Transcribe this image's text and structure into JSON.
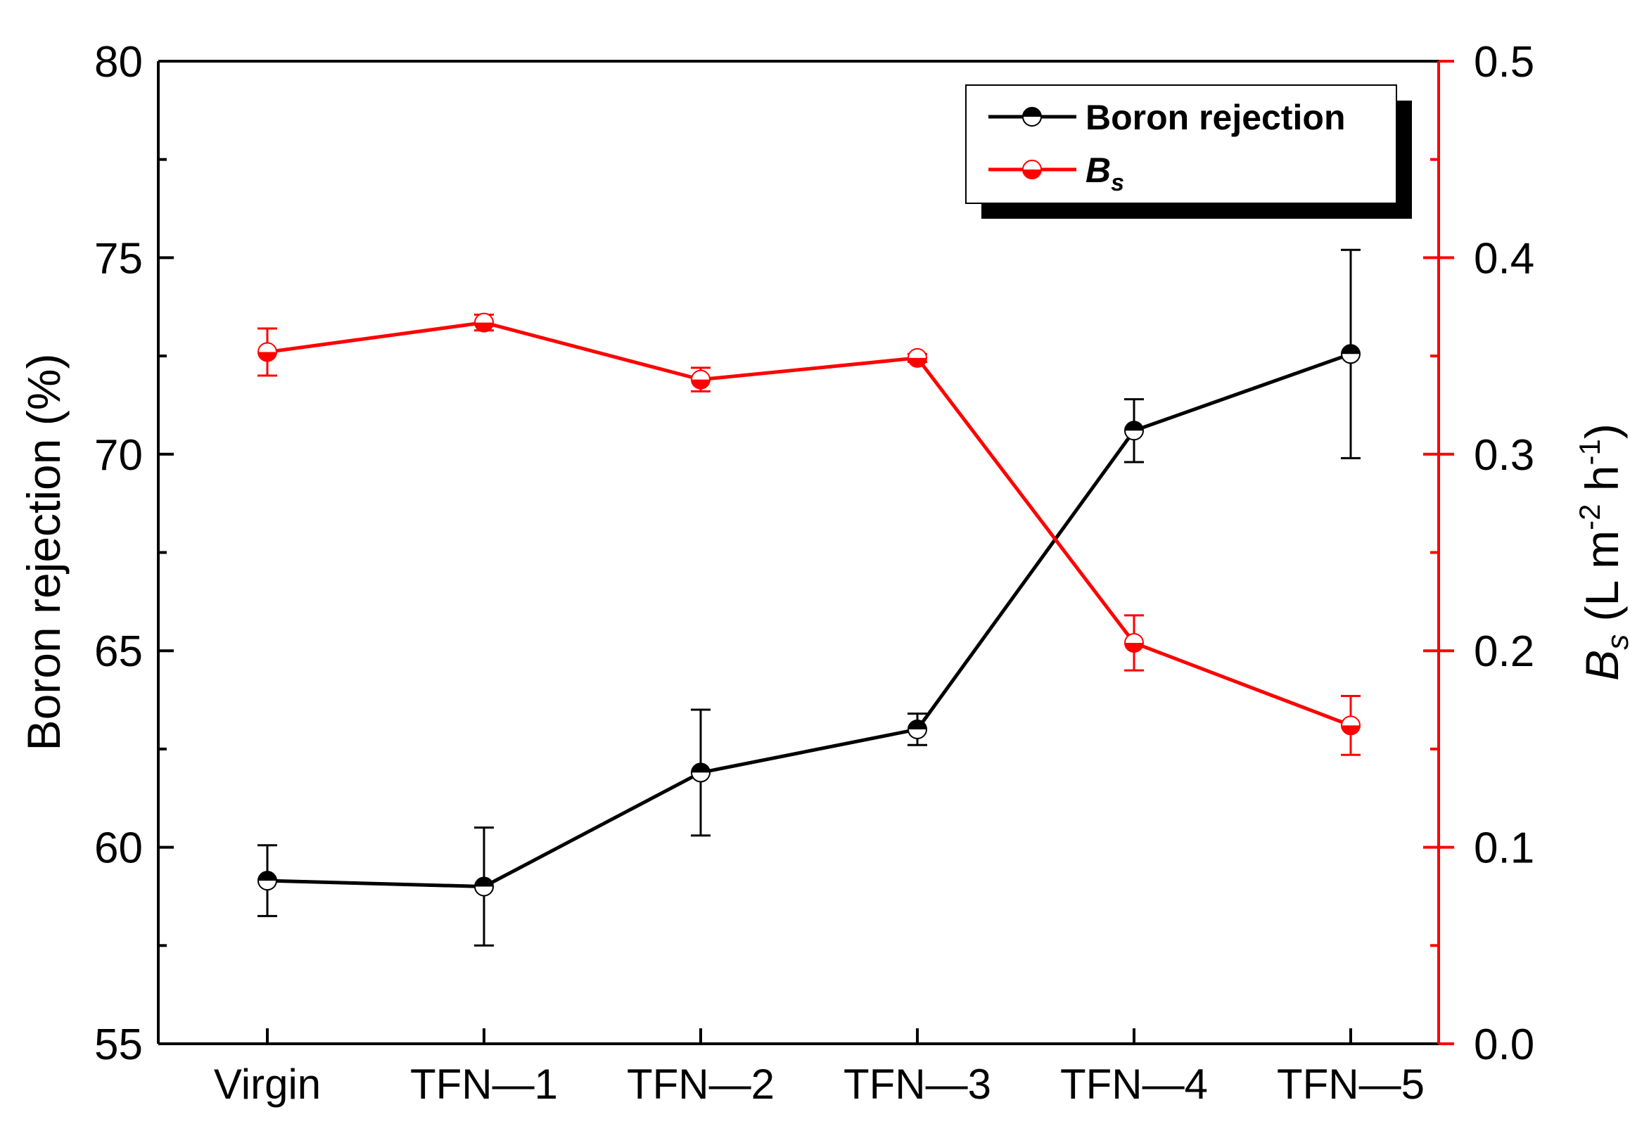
{
  "chart_data": {
    "type": "line",
    "categories": [
      "Virgin",
      "TFN—1",
      "TFN—2",
      "TFN—3",
      "TFN—4",
      "TFN—5"
    ],
    "left_axis": {
      "label": "Boron rejection (%)",
      "ylim": [
        55,
        80
      ],
      "ticks": [
        "55",
        "60",
        "65",
        "70",
        "75",
        "80"
      ],
      "tick_values": [
        55,
        60,
        65,
        70,
        75,
        80
      ],
      "minor_values": [
        57.5,
        62.5,
        67.5,
        72.5,
        77.5
      ],
      "color": "#000000"
    },
    "right_axis": {
      "label_main": "B",
      "label_sub": "s",
      "label_unit": " (L m",
      "label_sup1": "-2",
      "label_mid": " h",
      "label_sup2": "-1",
      "label_end": ")",
      "ylim": [
        0.0,
        0.5
      ],
      "ticks": [
        "0.0",
        "0.1",
        "0.2",
        "0.3",
        "0.4",
        "0.5"
      ],
      "tick_values": [
        0.0,
        0.1,
        0.2,
        0.3,
        0.4,
        0.5
      ],
      "minor_values": [
        0.05,
        0.15,
        0.25,
        0.35,
        0.45
      ],
      "color": "#ff0000"
    },
    "series": [
      {
        "name": "Boron rejection",
        "axis": "left",
        "color": "#000000",
        "values": [
          59.15,
          59.0,
          61.9,
          63.0,
          70.6,
          72.55
        ],
        "errors": [
          0.9,
          1.5,
          1.6,
          0.4,
          0.8,
          2.65
        ]
      },
      {
        "name": "B",
        "name_sub": "s",
        "axis": "right",
        "color": "#ff0000",
        "values": [
          0.352,
          0.367,
          0.338,
          0.349,
          0.204,
          0.162
        ],
        "errors": [
          0.012,
          0.004,
          0.006,
          0.002,
          0.014,
          0.015
        ]
      }
    ],
    "legend": {
      "position": "top-right",
      "entries": [
        {
          "label": "Boron rejection",
          "color": "#000000"
        },
        {
          "label": "B",
          "sub": "s",
          "color": "#ff0000"
        }
      ]
    }
  }
}
